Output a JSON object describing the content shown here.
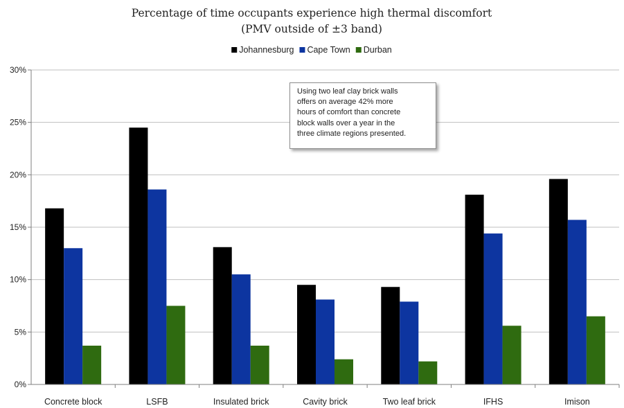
{
  "chart_data": {
    "type": "bar",
    "title": "Percentage of time occupants experience high thermal discomfort",
    "subtitle": "(PMV outside of ±3 band)",
    "categories": [
      "Concrete block",
      "LSFB",
      "Insulated brick",
      "Cavity brick",
      "Two leaf brick",
      "IFHS",
      "Imison"
    ],
    "series": [
      {
        "name": "Johannesburg",
        "color": "#000000",
        "values": [
          16.8,
          24.5,
          13.1,
          9.5,
          9.3,
          18.1,
          19.6
        ]
      },
      {
        "name": "Cape Town",
        "color": "#0d35a0",
        "values": [
          13.0,
          18.6,
          10.5,
          8.1,
          7.9,
          14.4,
          15.7
        ]
      },
      {
        "name": "Durban",
        "color": "#2f6b10",
        "values": [
          3.7,
          7.5,
          3.7,
          2.4,
          2.2,
          5.6,
          6.5
        ]
      }
    ],
    "yticks": [
      "0%",
      "5%",
      "10%",
      "15%",
      "20%",
      "25%",
      "30%"
    ],
    "ylim": [
      0,
      30
    ],
    "xlabel": "",
    "ylabel": "",
    "grid": true,
    "legend_position": "top-center",
    "annotation": "Using two leaf clay brick walls\noffers on average 42% more\nhours of comfort  than concrete\nblock walls over a year in the\nthree climate regions presented."
  }
}
